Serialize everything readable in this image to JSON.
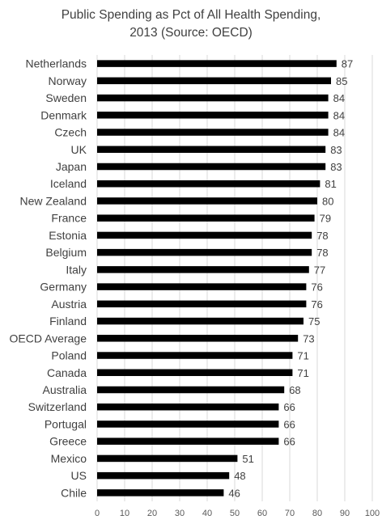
{
  "chart_data": {
    "type": "bar",
    "orientation": "horizontal",
    "title_lines": [
      "Public Spending as Pct of All Health Spending,",
      "2013 (Source: OECD)"
    ],
    "categories": [
      "Netherlands",
      "Norway",
      "Sweden",
      "Denmark",
      "Czech",
      "UK",
      "Japan",
      "Iceland",
      "New Zealand",
      "France",
      "Estonia",
      "Belgium",
      "Italy",
      "Germany",
      "Austria",
      "Finland",
      "OECD Average",
      "Poland",
      "Canada",
      "Australia",
      "Switzerland",
      "Portugal",
      "Greece",
      "Mexico",
      "US",
      "Chile"
    ],
    "values": [
      87,
      85,
      84,
      84,
      84,
      83,
      83,
      81,
      80,
      79,
      78,
      78,
      77,
      76,
      76,
      75,
      73,
      71,
      71,
      68,
      66,
      66,
      66,
      51,
      48,
      46
    ],
    "xlim": [
      0,
      100
    ],
    "xticks": [
      0,
      10,
      20,
      30,
      40,
      50,
      60,
      70,
      80,
      90,
      100
    ],
    "xlabel": "",
    "ylabel": "",
    "grid": "vertical",
    "data_labels": true,
    "bar_color": "#000000",
    "grid_color": "#d9d9d9"
  }
}
